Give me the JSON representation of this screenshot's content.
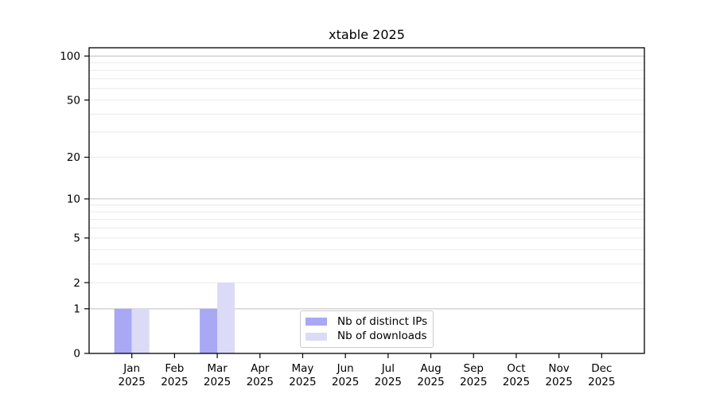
{
  "chart_data": {
    "type": "bar",
    "title": "xtable 2025",
    "categories": [
      "Jan",
      "Feb",
      "Mar",
      "Apr",
      "May",
      "Jun",
      "Jul",
      "Aug",
      "Sep",
      "Oct",
      "Nov",
      "Dec"
    ],
    "tick_year": "2025",
    "series": [
      {
        "name": "Nb of distinct IPs",
        "color": "#a8a8f5",
        "values": [
          1,
          0,
          1,
          0,
          0,
          0,
          0,
          0,
          0,
          0,
          0,
          0
        ]
      },
      {
        "name": "Nb of downloads",
        "color": "#dbdbf8",
        "values": [
          1,
          0,
          2,
          0,
          0,
          0,
          0,
          0,
          0,
          0,
          0,
          0
        ]
      }
    ],
    "xlabel": "",
    "ylabel": "",
    "yscale": "log1p",
    "ylim": [
      0,
      114
    ],
    "y_ticks": [
      0,
      1,
      2,
      5,
      10,
      20,
      50,
      100
    ],
    "y_minor_gridlines": [
      2,
      3,
      4,
      5,
      6,
      7,
      8,
      9,
      20,
      30,
      40,
      50,
      60,
      70,
      80,
      90
    ],
    "y_major_gridlines": [
      1,
      10,
      100
    ],
    "grid": true,
    "legend_position": "lower center",
    "colors": {
      "background": "#ffffff",
      "axis": "#000000",
      "major_grid": "#c4c4c4",
      "minor_grid": "#eaeaea",
      "legend_border": "#cccccc",
      "text": "#000000"
    }
  }
}
